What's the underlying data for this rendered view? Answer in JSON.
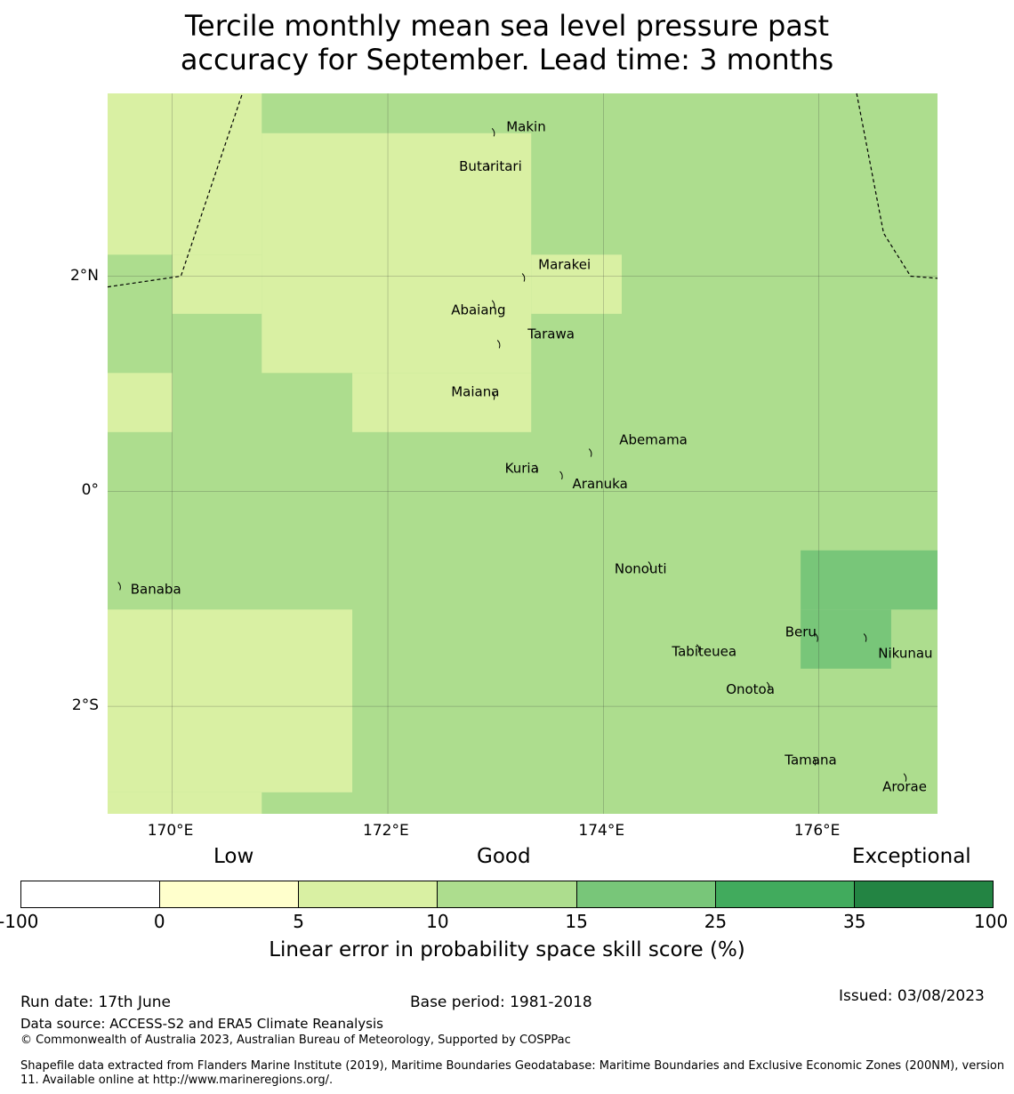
{
  "title_line1": "Tercile monthly mean sea level pressure past",
  "title_line2": "accuracy for September. Lead time: 3 months",
  "map": {
    "lon_range": [
      169.4,
      177.1
    ],
    "lat_range": [
      -3.0,
      3.7
    ],
    "lon_ticks": [
      {
        "value": 170,
        "label": "170°E"
      },
      {
        "value": 172,
        "label": "172°E"
      },
      {
        "value": 174,
        "label": "174°E"
      },
      {
        "value": 176,
        "label": "176°E"
      }
    ],
    "lat_ticks": [
      {
        "value": 2,
        "label": "2°N"
      },
      {
        "value": 0,
        "label": "0°"
      },
      {
        "value": -2,
        "label": "2°S"
      }
    ],
    "base_color": "#addd8e",
    "cells": [
      {
        "lon": [
          169.4,
          170.83
        ],
        "lat": [
          2.2,
          3.7
        ],
        "color": "#d9f0a3"
      },
      {
        "lon": [
          170.0,
          170.83
        ],
        "lat": [
          1.65,
          2.2
        ],
        "color": "#d9f0a3"
      },
      {
        "lon": [
          170.83,
          173.33
        ],
        "lat": [
          1.1,
          3.33
        ],
        "color": "#d9f0a3"
      },
      {
        "lon": [
          173.33,
          174.17
        ],
        "lat": [
          1.65,
          2.2
        ],
        "color": "#d9f0a3"
      },
      {
        "lon": [
          171.67,
          173.33
        ],
        "lat": [
          0.55,
          1.1
        ],
        "color": "#d9f0a3"
      },
      {
        "lon": [
          169.4,
          170.0
        ],
        "lat": [
          0.55,
          1.1
        ],
        "color": "#d9f0a3"
      },
      {
        "lon": [
          169.4,
          171.67
        ],
        "lat": [
          -2.8,
          -1.1
        ],
        "color": "#d9f0a3"
      },
      {
        "lon": [
          169.4,
          170.83
        ],
        "lat": [
          -3.0,
          -2.8
        ],
        "color": "#d9f0a3"
      },
      {
        "lon": [
          175.83,
          177.1
        ],
        "lat": [
          -1.1,
          -0.55
        ],
        "color": "#78c679"
      },
      {
        "lon": [
          175.83,
          176.67
        ],
        "lat": [
          -1.65,
          -1.1
        ],
        "color": "#78c679"
      }
    ],
    "eez_boundaries": [
      [
        [
          169.4,
          1.9
        ],
        [
          170.08,
          2.0
        ],
        [
          170.65,
          3.7
        ]
      ],
      [
        [
          176.35,
          3.7
        ],
        [
          176.6,
          2.4
        ],
        [
          176.85,
          2.0
        ],
        [
          177.1,
          1.98
        ]
      ]
    ],
    "places": [
      {
        "name": "Makin",
        "lon": 173.0,
        "lat": 3.35
      },
      {
        "name": "Butaritari",
        "lon": 172.95,
        "lat": 3.03
      },
      {
        "name": "Marakei",
        "lon": 173.28,
        "lat": 2.0
      },
      {
        "name": "Abaiang",
        "lon": 173.0,
        "lat": 1.75
      },
      {
        "name": "Tarawa",
        "lon": 173.05,
        "lat": 1.38
      },
      {
        "name": "Maiana",
        "lon": 173.0,
        "lat": 0.9
      },
      {
        "name": "Abemama",
        "lon": 173.9,
        "lat": 0.37
      },
      {
        "name": "Kuria",
        "lon": 173.4,
        "lat": 0.22
      },
      {
        "name": "Aranuka",
        "lon": 173.63,
        "lat": 0.16
      },
      {
        "name": "Nonouti",
        "lon": 174.45,
        "lat": -0.68
      },
      {
        "name": "Banaba",
        "lon": 169.53,
        "lat": -0.87
      },
      {
        "name": "Beru",
        "lon": 176.0,
        "lat": -1.35
      },
      {
        "name": "Tabiteuea",
        "lon": 174.9,
        "lat": -1.45
      },
      {
        "name": "Nikunau",
        "lon": 176.45,
        "lat": -1.35
      },
      {
        "name": "Onotoa",
        "lon": 175.55,
        "lat": -1.8
      },
      {
        "name": "Tamana",
        "lon": 175.98,
        "lat": -2.5
      },
      {
        "name": "Arorae",
        "lon": 176.82,
        "lat": -2.65
      }
    ]
  },
  "colorbar": {
    "categories": [
      {
        "label": "Low"
      },
      {
        "label": "Good"
      },
      {
        "label": "Exceptional"
      }
    ],
    "segments": [
      "#ffffff",
      "#ffffcc",
      "#d9f0a3",
      "#addd8e",
      "#78c679",
      "#41ab5d",
      "#238443"
    ],
    "ticks": [
      "-100",
      "0",
      "5",
      "10",
      "15",
      "25",
      "35",
      "100"
    ],
    "title": "Linear error in probability space skill score (%)"
  },
  "footer": {
    "run_date": "Run date: 17th June",
    "base_period": "Base period: 1981-2018",
    "issued": "Issued: 03/08/2023",
    "data_source": "Data source: ACCESS-S2 and ERA5 Climate Reanalysis",
    "copyright": "© Commonwealth of Australia 2023, Australian Bureau of Meteorology, Supported by COSPPac",
    "shapefile": "Shapefile data extracted from Flanders Marine Institute (2019), Maritime Boundaries Geodatabase: Maritime Boundaries and Exclusive Economic Zones (200NM), version 11. Available online at http://www.marineregions.org/."
  }
}
